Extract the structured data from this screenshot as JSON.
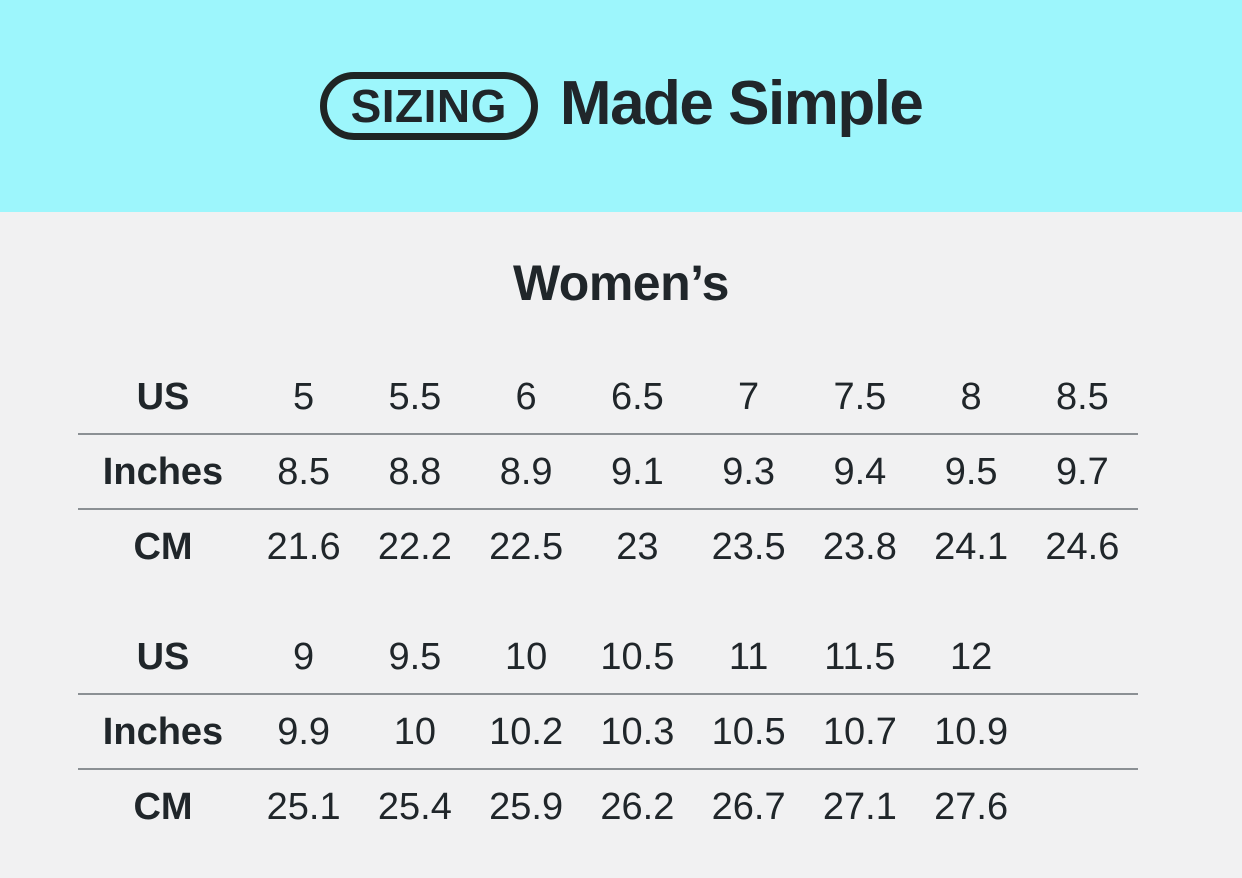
{
  "banner": {
    "badge_label": "SIZING",
    "title": "Made Simple"
  },
  "section": {
    "title": "Women’s"
  },
  "table": {
    "groups": [
      {
        "rows": [
          {
            "label": "US",
            "values": [
              "5",
              "5.5",
              "6",
              "6.5",
              "7",
              "7.5",
              "8",
              "8.5"
            ]
          },
          {
            "label": "Inches",
            "values": [
              "8.5",
              "8.8",
              "8.9",
              "9.1",
              "9.3",
              "9.4",
              "9.5",
              "9.7"
            ]
          },
          {
            "label": "CM",
            "values": [
              "21.6",
              "22.2",
              "22.5",
              "23",
              "23.5",
              "23.8",
              "24.1",
              "24.6"
            ]
          }
        ]
      },
      {
        "rows": [
          {
            "label": "US",
            "values": [
              "9",
              "9.5",
              "10",
              "10.5",
              "11",
              "11.5",
              "12",
              ""
            ]
          },
          {
            "label": "Inches",
            "values": [
              "9.9",
              "10",
              "10.2",
              "10.3",
              "10.5",
              "10.7",
              "10.9",
              ""
            ]
          },
          {
            "label": "CM",
            "values": [
              "25.1",
              "25.4",
              "25.9",
              "26.2",
              "26.7",
              "27.1",
              "27.6",
              ""
            ]
          }
        ]
      }
    ]
  },
  "chart_data": {
    "type": "table",
    "title": "SIZING Made Simple",
    "subtitle": "Women’s",
    "row_labels": [
      "US",
      "Inches",
      "CM"
    ],
    "groups": [
      {
        "US": [
          5,
          5.5,
          6,
          6.5,
          7,
          7.5,
          8,
          8.5
        ],
        "Inches": [
          8.5,
          8.8,
          8.9,
          9.1,
          9.3,
          9.4,
          9.5,
          9.7
        ],
        "CM": [
          21.6,
          22.2,
          22.5,
          23,
          23.5,
          23.8,
          24.1,
          24.6
        ]
      },
      {
        "US": [
          9,
          9.5,
          10,
          10.5,
          11,
          11.5,
          12
        ],
        "Inches": [
          9.9,
          10,
          10.2,
          10.3,
          10.5,
          10.7,
          10.9
        ],
        "CM": [
          25.1,
          25.4,
          25.9,
          26.2,
          26.7,
          27.1,
          27.6
        ]
      }
    ]
  },
  "colors": {
    "banner_background": "#9df6fc",
    "page_background": "#f1f1f2",
    "text": "#20262a",
    "badge_outline": "#1f2524",
    "divider": "#8b9094"
  }
}
